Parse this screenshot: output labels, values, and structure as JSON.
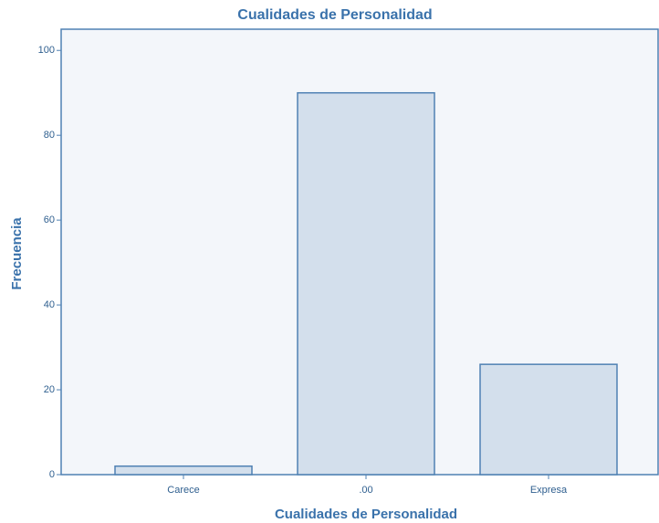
{
  "chart_data": {
    "type": "bar",
    "title": "Cualidades de Personalidad",
    "x_label": "Cualidades de Personalidad",
    "y_label": "Frecuencia",
    "categories": [
      "Carece",
      ".00",
      "Expresa"
    ],
    "values": [
      2,
      90,
      26
    ],
    "color": "#d3dfec",
    "edge_color": "#4f81b3",
    "background": "#f3f6fa",
    "ylim": [
      0,
      105
    ],
    "yticks": [
      0,
      20,
      40,
      60,
      80,
      100
    ],
    "grid": false
  }
}
